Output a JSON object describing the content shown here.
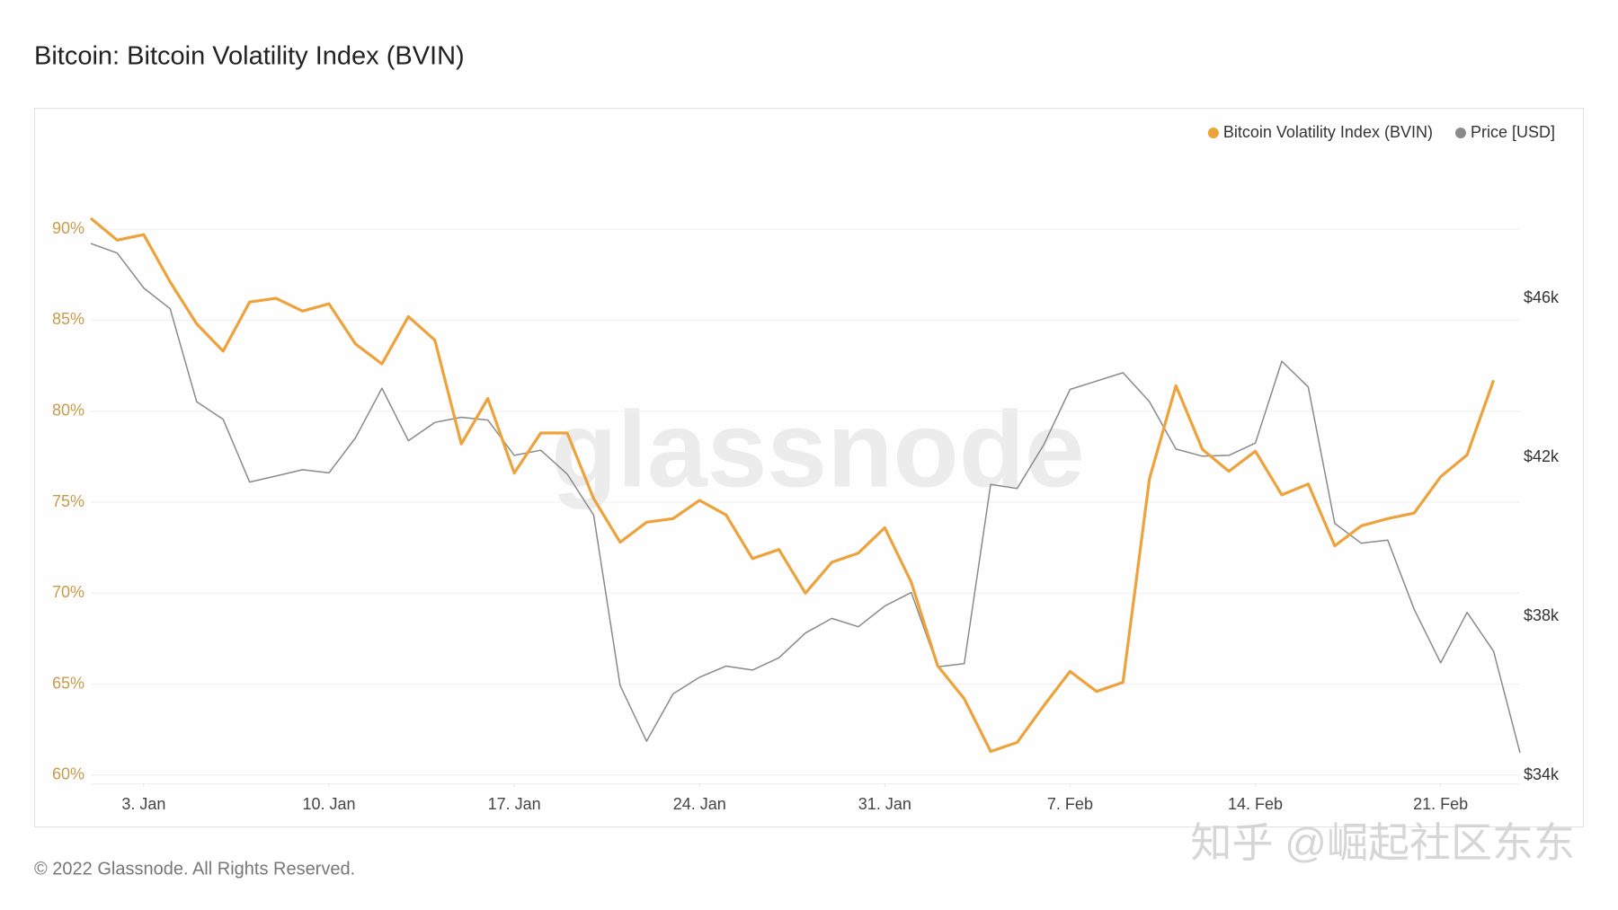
{
  "chart_data": {
    "type": "line",
    "title": "Bitcoin: Bitcoin Volatility Index (BVIN)",
    "footer": "© 2022 Glassnode. All Rights Reserved.",
    "watermark": "glassnode",
    "overlay_watermark": "知乎 @崛起社区东东",
    "x": [
      1,
      2,
      3,
      4,
      5,
      6,
      7,
      8,
      9,
      10,
      11,
      12,
      13,
      14,
      15,
      16,
      17,
      18,
      19,
      20,
      21,
      22,
      23,
      24,
      25,
      26,
      27,
      28,
      29,
      30,
      31,
      32,
      33,
      34,
      35,
      36,
      37,
      38,
      39,
      40,
      41,
      42,
      43,
      44,
      45,
      46,
      47,
      48,
      49,
      50,
      51,
      52,
      53,
      54,
      55
    ],
    "xlim": [
      1,
      55
    ],
    "xticks": [
      {
        "value": 3,
        "label": "3. Jan"
      },
      {
        "value": 10,
        "label": "10. Jan"
      },
      {
        "value": 17,
        "label": "17. Jan"
      },
      {
        "value": 24,
        "label": "24. Jan"
      },
      {
        "value": 31,
        "label": "31. Jan"
      },
      {
        "value": 38,
        "label": "7. Feb"
      },
      {
        "value": 45,
        "label": "14. Feb"
      },
      {
        "value": 52,
        "label": "21. Feb"
      }
    ],
    "ylim": [
      59.55,
      94.5
    ],
    "yticks": [
      {
        "value": 60,
        "label": "60%"
      },
      {
        "value": 65,
        "label": "65%"
      },
      {
        "value": 70,
        "label": "70%"
      },
      {
        "value": 75,
        "label": "75%"
      },
      {
        "value": 80,
        "label": "80%"
      },
      {
        "value": 85,
        "label": "85%"
      },
      {
        "value": 90,
        "label": "90%"
      }
    ],
    "y2lim": [
      33800,
      49800
    ],
    "y2ticks": [
      {
        "value": 34000,
        "label": "$34k"
      },
      {
        "value": 38000,
        "label": "$38k"
      },
      {
        "value": 42000,
        "label": "$42k"
      },
      {
        "value": 46000,
        "label": "$46k"
      }
    ],
    "grid": true,
    "legend": "top-right",
    "series": [
      {
        "name": "Bitcoin Volatility Index (BVIN)",
        "color": "#eda23b",
        "axis": "y",
        "values": [
          90.6,
          89.4,
          89.7,
          87.1,
          84.8,
          83.3,
          86.0,
          86.2,
          85.5,
          85.9,
          83.7,
          82.6,
          85.2,
          83.9,
          78.2,
          80.7,
          76.6,
          78.8,
          78.8,
          75.2,
          72.8,
          73.9,
          74.1,
          75.1,
          74.3,
          71.9,
          72.4,
          70.0,
          71.7,
          72.2,
          73.6,
          70.6,
          66.0,
          64.2,
          61.3,
          61.8,
          63.8,
          65.7,
          64.6,
          65.1,
          76.3,
          81.4,
          77.9,
          76.7,
          77.8,
          75.4,
          76.0,
          72.6,
          73.7,
          74.1,
          74.4,
          76.4,
          77.6,
          81.7,
          null
        ]
      },
      {
        "name": "Price [USD]",
        "color": "#8a8a8a",
        "axis": "y2",
        "values": [
          47380,
          47140,
          46260,
          45740,
          43400,
          42960,
          41380,
          41530,
          41690,
          41610,
          42490,
          43740,
          42420,
          42880,
          43010,
          42940,
          42050,
          42180,
          41580,
          40550,
          36260,
          34860,
          36050,
          36470,
          36750,
          36650,
          36960,
          37580,
          37950,
          37740,
          38260,
          38600,
          36730,
          36810,
          41320,
          41220,
          42310,
          43710,
          43920,
          44130,
          43400,
          42210,
          42030,
          42050,
          42360,
          44420,
          43770,
          40340,
          39840,
          39920,
          38180,
          36830,
          38100,
          37120,
          34570
        ]
      }
    ]
  }
}
